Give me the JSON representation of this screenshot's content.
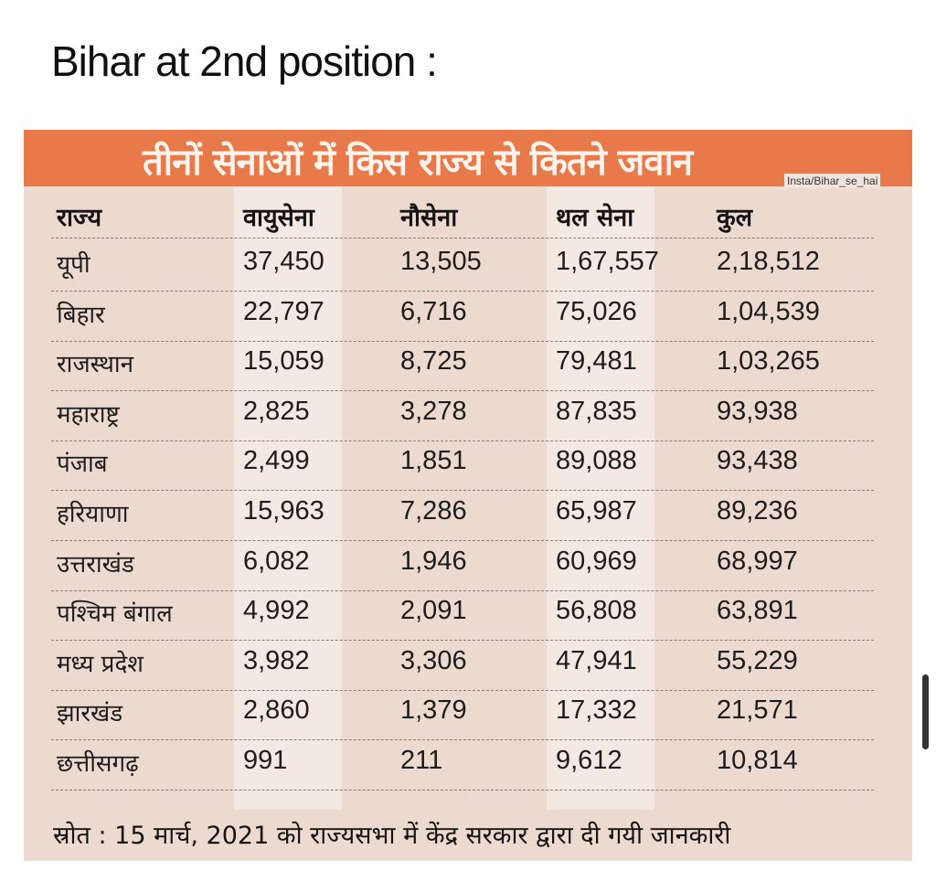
{
  "headline": "Bihar at 2nd position :",
  "clipping": {
    "title": "तीनों सेनाओं में किस राज्य से कितने जवान",
    "credit": "Insta/Bihar_se_hai",
    "columns": [
      "राज्य",
      "वायुसेना",
      "नौसेना",
      "थल सेना",
      "कुल"
    ],
    "rows": [
      [
        "यूपी",
        "37,450",
        "13,505",
        "1,67,557",
        "2,18,512"
      ],
      [
        "बिहार",
        "22,797",
        "6,716",
        "75,026",
        "1,04,539"
      ],
      [
        "राजस्थान",
        "15,059",
        "8,725",
        "79,481",
        "1,03,265"
      ],
      [
        "महाराष्ट्र",
        "2,825",
        "3,278",
        "87,835",
        "93,938"
      ],
      [
        "पंजाब",
        "2,499",
        "1,851",
        "89,088",
        "93,438"
      ],
      [
        "हरियाणा",
        "15,963",
        "7,286",
        "65,987",
        "89,236"
      ],
      [
        "उत्तराखंड",
        "6,082",
        "1,946",
        "60,969",
        "68,997"
      ],
      [
        "पश्चिम बंगाल",
        "4,992",
        "2,091",
        "56,808",
        "63,891"
      ],
      [
        "मध्य प्रदेश",
        "3,982",
        "3,306",
        "47,941",
        "55,229"
      ],
      [
        "झारखंड",
        "2,860",
        "1,379",
        "17,332",
        "21,571"
      ],
      [
        "छत्तीसगढ़",
        "991",
        "211",
        "9,612",
        "10,814"
      ]
    ],
    "footnote": "स्रोत : 15 मार्च, 2021 को राज्यसभा में केंद्र सरकार द्वारा दी गयी जानकारी"
  },
  "colors": {
    "banner": "#e8794a",
    "paper": "#ecd9cf",
    "stripe": "#f3e8e2",
    "text": "#1e1c1c"
  }
}
